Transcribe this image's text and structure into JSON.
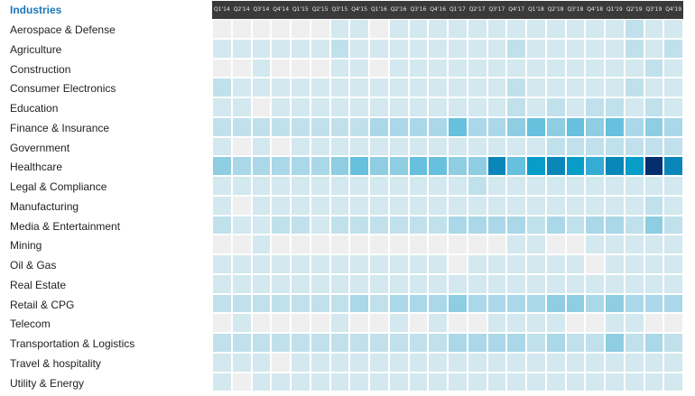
{
  "header": {
    "label": "Industries"
  },
  "colors": {
    "none": "#efefef",
    "scale": [
      "#d3e8ef",
      "#c0e1ec",
      "#aad8e8",
      "#8ecde2",
      "#67c0dd",
      "#36abd4",
      "#089cc9",
      "#0a86b9",
      "#066aa0",
      "#052e6e"
    ]
  },
  "chart_data": {
    "type": "heatmap",
    "title": "",
    "xlabel": "",
    "ylabel": "Industries",
    "columns": [
      "Q1'14",
      "Q2'14",
      "Q3'14",
      "Q4'14",
      "Q1'15",
      "Q2'15",
      "Q3'15",
      "Q4'15",
      "Q1'16",
      "Q2'16",
      "Q3'16",
      "Q4'16",
      "Q1'17",
      "Q2'17",
      "Q3'17",
      "Q4'17",
      "Q1'18",
      "Q2'18",
      "Q3'18",
      "Q4'18",
      "Q1'19",
      "Q2'19",
      "Q3'19",
      "Q4'19"
    ],
    "rows": [
      "Aerospace & Defense",
      "Agriculture",
      "Construction",
      "Consumer Electronics",
      "Education",
      "Finance & Insurance",
      "Government",
      "Healthcare",
      "Legal & Compliance",
      "Manufacturing",
      "Media & Entertainment",
      "Mining",
      "Oil & Gas",
      "Real Estate",
      "Retail & CPG",
      "Telecom",
      "Transportation & Logistics",
      "Travel & hospitality",
      "Utility & Energy"
    ],
    "intensity_range": [
      0,
      10
    ],
    "values": [
      [
        0,
        0,
        0,
        0,
        0,
        0,
        1,
        1,
        0,
        1,
        1,
        1,
        1,
        1,
        1,
        1,
        1,
        1,
        1,
        1,
        1,
        2,
        1,
        1
      ],
      [
        1,
        1,
        1,
        1,
        1,
        1,
        2,
        1,
        1,
        1,
        1,
        1,
        1,
        1,
        1,
        2,
        1,
        1,
        1,
        1,
        1,
        2,
        1,
        2
      ],
      [
        0,
        0,
        1,
        0,
        0,
        0,
        1,
        1,
        0,
        1,
        1,
        1,
        1,
        1,
        1,
        1,
        1,
        1,
        1,
        1,
        1,
        1,
        2,
        1
      ],
      [
        2,
        1,
        1,
        1,
        1,
        1,
        1,
        1,
        1,
        1,
        1,
        1,
        1,
        1,
        1,
        2,
        1,
        1,
        1,
        1,
        1,
        2,
        1,
        1
      ],
      [
        1,
        1,
        0,
        1,
        1,
        1,
        1,
        1,
        1,
        1,
        1,
        1,
        1,
        1,
        1,
        2,
        1,
        2,
        1,
        2,
        2,
        1,
        2,
        1
      ],
      [
        2,
        2,
        2,
        2,
        2,
        2,
        2,
        2,
        3,
        3,
        3,
        3,
        5,
        3,
        3,
        4,
        5,
        4,
        5,
        4,
        5,
        3,
        4,
        3
      ],
      [
        1,
        0,
        1,
        0,
        1,
        1,
        1,
        1,
        1,
        1,
        1,
        1,
        1,
        1,
        1,
        1,
        1,
        2,
        2,
        2,
        2,
        2,
        2,
        2
      ],
      [
        4,
        3,
        3,
        3,
        3,
        3,
        4,
        5,
        4,
        4,
        5,
        5,
        4,
        4,
        8,
        5,
        7,
        8,
        7,
        6,
        8,
        7,
        10,
        8
      ],
      [
        1,
        1,
        1,
        1,
        1,
        1,
        1,
        1,
        1,
        1,
        1,
        1,
        1,
        2,
        1,
        1,
        1,
        1,
        1,
        1,
        1,
        1,
        1,
        1
      ],
      [
        1,
        0,
        1,
        1,
        1,
        1,
        1,
        1,
        1,
        1,
        1,
        1,
        1,
        1,
        1,
        1,
        1,
        1,
        1,
        1,
        1,
        1,
        2,
        1
      ],
      [
        2,
        1,
        1,
        2,
        2,
        1,
        2,
        2,
        2,
        2,
        2,
        2,
        3,
        3,
        3,
        3,
        2,
        3,
        2,
        3,
        3,
        2,
        4,
        2
      ],
      [
        0,
        0,
        1,
        0,
        0,
        0,
        0,
        0,
        0,
        0,
        0,
        0,
        0,
        0,
        0,
        1,
        1,
        0,
        0,
        1,
        1,
        1,
        1,
        1
      ],
      [
        1,
        1,
        1,
        1,
        1,
        1,
        1,
        1,
        1,
        1,
        1,
        1,
        0,
        1,
        1,
        1,
        1,
        1,
        1,
        0,
        1,
        1,
        1,
        1
      ],
      [
        1,
        1,
        1,
        1,
        1,
        1,
        1,
        1,
        1,
        1,
        1,
        1,
        1,
        1,
        1,
        1,
        1,
        1,
        1,
        1,
        1,
        1,
        1,
        1
      ],
      [
        2,
        2,
        2,
        2,
        2,
        2,
        2,
        3,
        2,
        3,
        3,
        3,
        4,
        3,
        3,
        3,
        3,
        4,
        4,
        3,
        4,
        3,
        3,
        3
      ],
      [
        0,
        1,
        0,
        0,
        0,
        0,
        1,
        0,
        0,
        1,
        0,
        1,
        0,
        0,
        1,
        1,
        1,
        1,
        0,
        0,
        1,
        1,
        0,
        0
      ],
      [
        2,
        2,
        2,
        2,
        2,
        2,
        2,
        2,
        2,
        2,
        2,
        2,
        3,
        3,
        3,
        3,
        2,
        3,
        2,
        2,
        4,
        2,
        3,
        2
      ],
      [
        1,
        1,
        1,
        0,
        1,
        1,
        1,
        1,
        1,
        1,
        1,
        1,
        1,
        1,
        1,
        1,
        1,
        1,
        1,
        1,
        1,
        1,
        1,
        1
      ],
      [
        1,
        0,
        1,
        1,
        1,
        1,
        1,
        1,
        1,
        1,
        1,
        1,
        1,
        1,
        1,
        1,
        1,
        1,
        1,
        1,
        1,
        1,
        1,
        1
      ]
    ]
  }
}
